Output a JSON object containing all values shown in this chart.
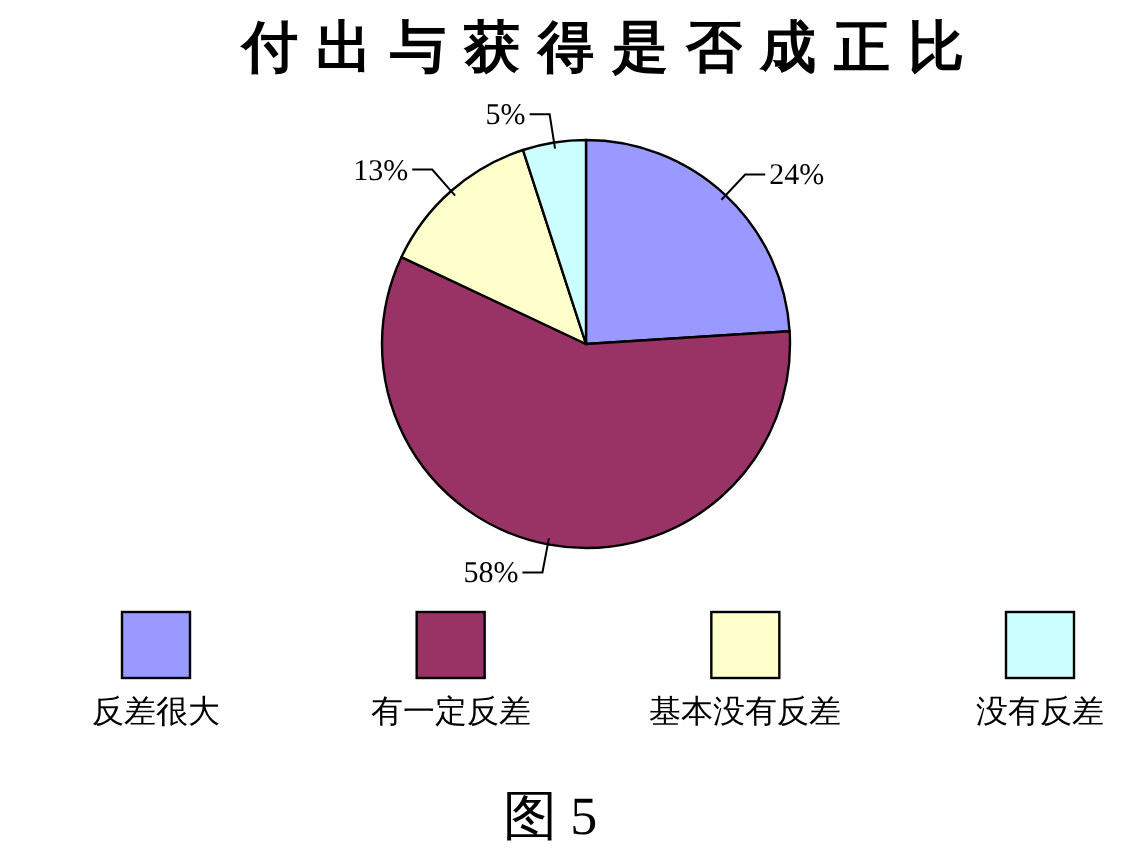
{
  "chart_data": {
    "type": "pie",
    "title": "付出与获得是否成正比",
    "categories": [
      "反差很大",
      "有一定反差",
      "基本没有反差",
      "没有反差"
    ],
    "values": [
      24,
      58,
      13,
      5
    ],
    "colors": [
      "#9999ff",
      "#993366",
      "#ffffcc",
      "#ccffff"
    ],
    "value_labels": [
      "24%",
      "58%",
      "13%",
      "5%"
    ],
    "legend": "bottom",
    "annotations": [
      "图 5"
    ]
  }
}
